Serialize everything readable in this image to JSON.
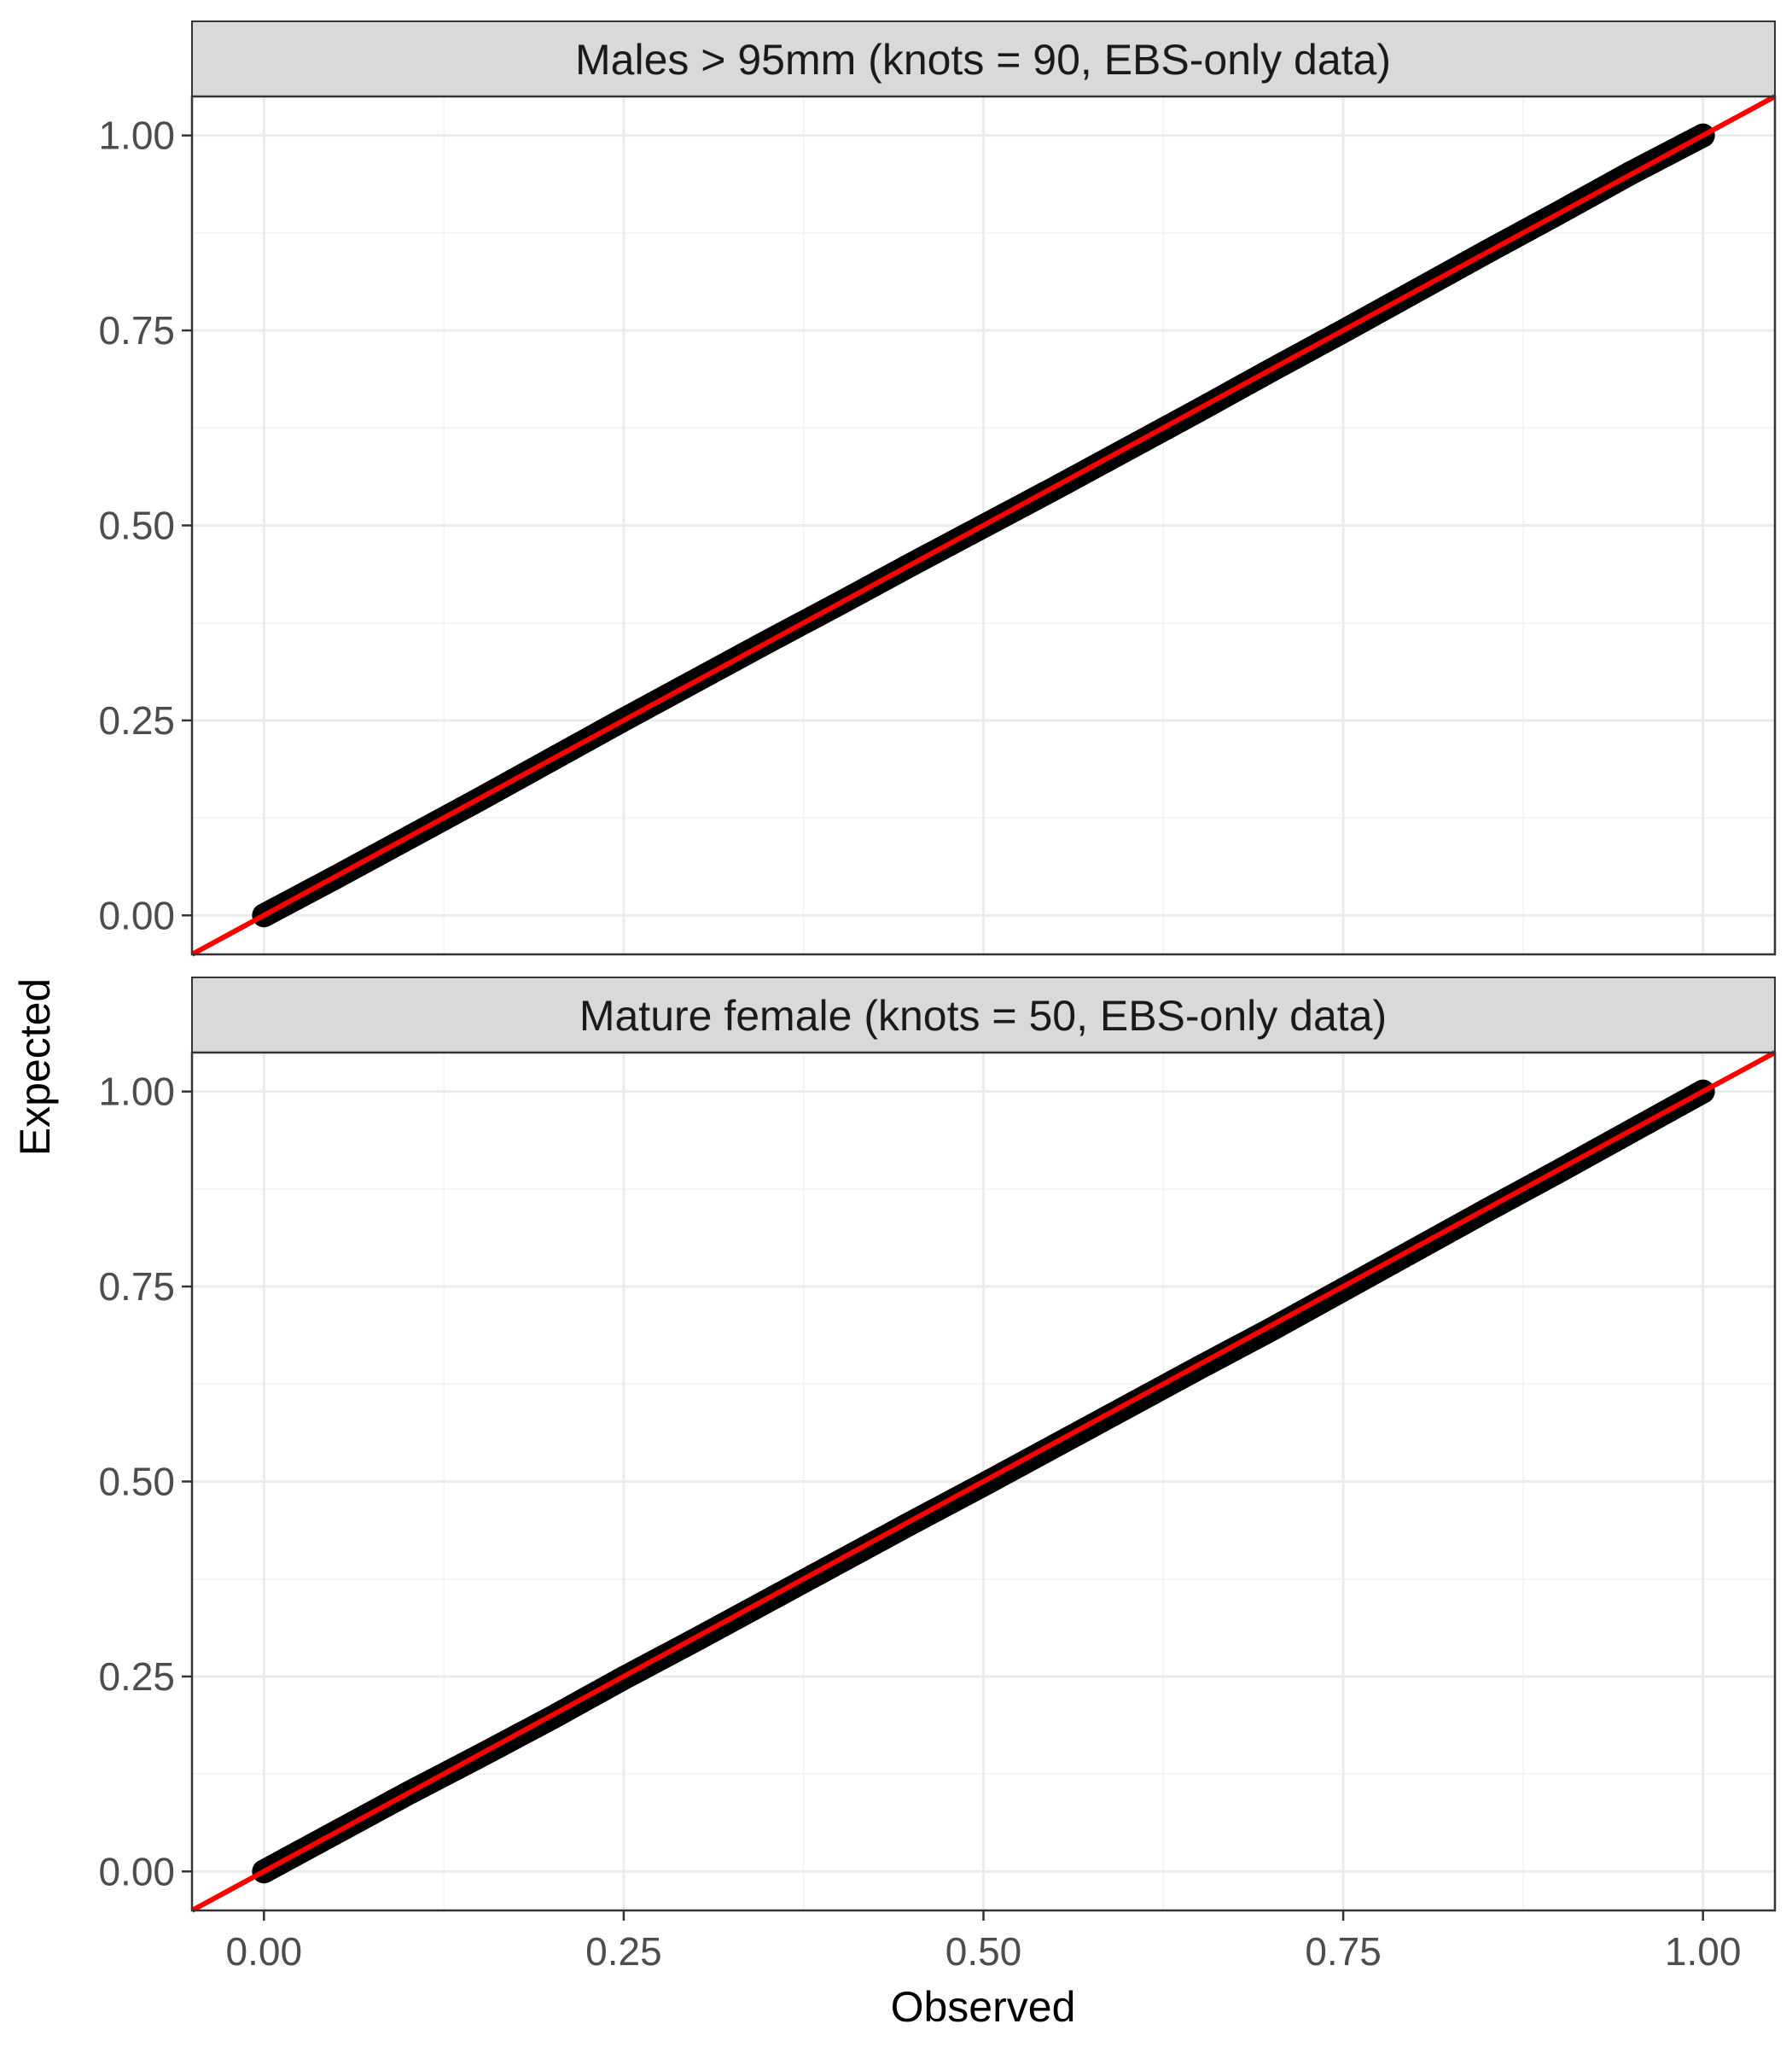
{
  "chart_data": [
    {
      "type": "scatter",
      "title": "Males > 95mm (knots = 90, EBS-only data)",
      "xlabel": "Observed",
      "ylabel": "Expected",
      "xlim": [
        -0.05,
        1.05
      ],
      "ylim": [
        -0.05,
        1.05
      ],
      "x_ticks": [
        "0.00",
        "0.25",
        "0.50",
        "0.75",
        "1.00"
      ],
      "y_ticks": [
        "0.00",
        "0.25",
        "0.50",
        "0.75",
        "1.00"
      ],
      "grid": true,
      "series": [
        {
          "x": [
            0,
            0.05,
            0.1,
            0.15,
            0.2,
            0.25,
            0.3,
            0.35,
            0.4,
            0.45,
            0.5,
            0.55,
            0.6,
            0.65,
            0.7,
            0.75,
            0.8,
            0.85,
            0.9,
            0.95,
            1.0
          ],
          "values": [
            0,
            0.049,
            0.099,
            0.149,
            0.2,
            0.251,
            0.301,
            0.351,
            0.4,
            0.45,
            0.499,
            0.548,
            0.598,
            0.648,
            0.699,
            0.749,
            0.8,
            0.851,
            0.901,
            0.952,
            1.0
          ],
          "color": "#000000"
        }
      ],
      "reference_line": {
        "slope": 1,
        "intercept": 0,
        "color": "#ff0000"
      }
    },
    {
      "type": "scatter",
      "title": "Mature female (knots = 50, EBS-only data)",
      "xlabel": "Observed",
      "ylabel": "Expected",
      "xlim": [
        -0.05,
        1.05
      ],
      "ylim": [
        -0.05,
        1.05
      ],
      "x_ticks": [
        "0.00",
        "0.25",
        "0.50",
        "0.75",
        "1.00"
      ],
      "y_ticks": [
        "0.00",
        "0.25",
        "0.50",
        "0.75",
        "1.00"
      ],
      "grid": true,
      "series": [
        {
          "x": [
            0,
            0.05,
            0.1,
            0.15,
            0.2,
            0.25,
            0.3,
            0.35,
            0.4,
            0.45,
            0.5,
            0.55,
            0.6,
            0.65,
            0.7,
            0.75,
            0.8,
            0.85,
            0.9,
            0.95,
            1.0
          ],
          "values": [
            0,
            0.05,
            0.1,
            0.148,
            0.197,
            0.248,
            0.297,
            0.347,
            0.397,
            0.447,
            0.496,
            0.546,
            0.596,
            0.646,
            0.695,
            0.746,
            0.797,
            0.848,
            0.898,
            0.949,
            1.0
          ],
          "color": "#000000"
        }
      ],
      "reference_line": {
        "slope": 1,
        "intercept": 0,
        "color": "#ff0000"
      }
    }
  ]
}
